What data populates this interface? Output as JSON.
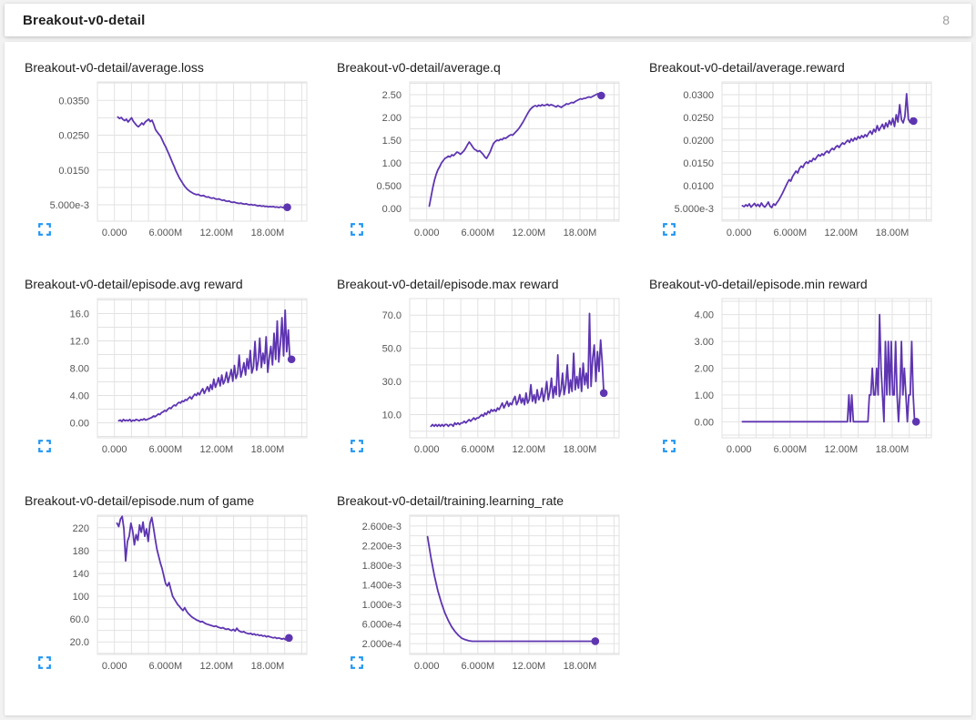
{
  "header": {
    "title": "Breakout-v0-detail",
    "count": "8"
  },
  "colors": {
    "line": "#5e35b1",
    "grid": "#e2e2e2",
    "tick_text": "#555555",
    "title_text": "#212121",
    "expand_icon": "#2196f3",
    "card_bg": "#ffffff",
    "page_bg": "#f2f2f2"
  },
  "icons": {
    "expand": "fullscreen-expand-icon"
  },
  "axis": {
    "xlim": [
      -2000000,
      22600000
    ],
    "x_grid_step": 2000000,
    "x_ticks": [
      {
        "v": 0,
        "label": "0.000"
      },
      {
        "v": 6000000,
        "label": "6.000M"
      },
      {
        "v": 12000000,
        "label": "12.00M"
      },
      {
        "v": 18000000,
        "label": "18.00M"
      }
    ]
  },
  "chart_data": [
    {
      "type": "line",
      "title": "Breakout-v0-detail/average.loss",
      "ylim": [
        0.0003,
        0.0403
      ],
      "y_grid_step": 0.005,
      "yticks": [
        {
          "v": 0.035,
          "label": "0.0350"
        },
        {
          "v": 0.025,
          "label": "0.0250"
        },
        {
          "v": 0.015,
          "label": "0.0150"
        },
        {
          "v": 0.005,
          "label": "5.000e-3"
        }
      ],
      "x_start": 400000,
      "x_end": 20300000,
      "values": [
        0.0302,
        0.0298,
        0.0301,
        0.0295,
        0.0292,
        0.0296,
        0.0288,
        0.0294,
        0.03,
        0.029,
        0.0284,
        0.0278,
        0.0274,
        0.0279,
        0.0285,
        0.028,
        0.0288,
        0.0292,
        0.0296,
        0.0289,
        0.0293,
        0.0281,
        0.0266,
        0.0259,
        0.0253,
        0.0247,
        0.0236,
        0.0225,
        0.0216,
        0.0205,
        0.0194,
        0.0182,
        0.017,
        0.0159,
        0.0147,
        0.0137,
        0.0127,
        0.0119,
        0.0111,
        0.0104,
        0.0098,
        0.0093,
        0.0089,
        0.0086,
        0.0083,
        0.0081,
        0.0079,
        0.008,
        0.0077,
        0.0076,
        0.0077,
        0.0074,
        0.0072,
        0.0073,
        0.007,
        0.0069,
        0.007,
        0.0067,
        0.0066,
        0.0067,
        0.0065,
        0.0063,
        0.0064,
        0.0061,
        0.006,
        0.0061,
        0.0058,
        0.0057,
        0.0058,
        0.0056,
        0.0055,
        0.0054,
        0.0055,
        0.0053,
        0.0052,
        0.0053,
        0.0051,
        0.005,
        0.0051,
        0.0049,
        0.005,
        0.0048,
        0.0047,
        0.0048,
        0.0046,
        0.0047,
        0.0045,
        0.0046,
        0.0044,
        0.0045,
        0.0044,
        0.0045,
        0.0043,
        0.0044,
        0.0042,
        0.0044,
        0.0043,
        0.0042,
        0.0043,
        0.0043
      ]
    },
    {
      "type": "line",
      "title": "Breakout-v0-detail/average.q",
      "ylim": [
        -0.28,
        2.78
      ],
      "y_grid_step": 0.25,
      "yticks": [
        {
          "v": 2.5,
          "label": "2.50"
        },
        {
          "v": 2.0,
          "label": "2.00"
        },
        {
          "v": 1.5,
          "label": "1.50"
        },
        {
          "v": 1.0,
          "label": "1.00"
        },
        {
          "v": 0.5,
          "label": "0.500"
        },
        {
          "v": 0.0,
          "label": "0.00"
        }
      ],
      "x_start": 300000,
      "x_end": 20500000,
      "values": [
        0.05,
        0.25,
        0.45,
        0.62,
        0.75,
        0.85,
        0.92,
        1.0,
        1.05,
        1.1,
        1.12,
        1.15,
        1.13,
        1.18,
        1.16,
        1.2,
        1.24,
        1.22,
        1.19,
        1.23,
        1.27,
        1.33,
        1.4,
        1.46,
        1.41,
        1.35,
        1.3,
        1.28,
        1.25,
        1.27,
        1.23,
        1.19,
        1.13,
        1.1,
        1.17,
        1.24,
        1.34,
        1.43,
        1.47,
        1.5,
        1.49,
        1.52,
        1.51,
        1.55,
        1.54,
        1.57,
        1.6,
        1.62,
        1.61,
        1.65,
        1.69,
        1.73,
        1.78,
        1.84,
        1.9,
        1.97,
        2.04,
        2.11,
        2.17,
        2.21,
        2.24,
        2.26,
        2.24,
        2.27,
        2.25,
        2.28,
        2.26,
        2.27,
        2.29,
        2.26,
        2.28,
        2.27,
        2.25,
        2.23,
        2.26,
        2.24,
        2.22,
        2.25,
        2.27,
        2.3,
        2.29,
        2.31,
        2.33,
        2.32,
        2.35,
        2.37,
        2.39,
        2.41,
        2.4,
        2.42,
        2.42,
        2.44,
        2.45,
        2.44,
        2.46,
        2.48,
        2.5,
        2.52,
        2.49,
        2.48
      ]
    },
    {
      "type": "line",
      "title": "Breakout-v0-detail/average.reward",
      "ylim": [
        0.0022,
        0.0328
      ],
      "y_grid_step": 0.0025,
      "yticks": [
        {
          "v": 0.03,
          "label": "0.0300"
        },
        {
          "v": 0.025,
          "label": "0.0250"
        },
        {
          "v": 0.02,
          "label": "0.0200"
        },
        {
          "v": 0.015,
          "label": "0.0150"
        },
        {
          "v": 0.01,
          "label": "0.0100"
        },
        {
          "v": 0.005,
          "label": "5.000e-3"
        }
      ],
      "x_start": 400000,
      "x_end": 20500000,
      "values": [
        0.0056,
        0.0054,
        0.0058,
        0.0055,
        0.006,
        0.0053,
        0.0057,
        0.0061,
        0.0055,
        0.0059,
        0.0054,
        0.0062,
        0.0056,
        0.0053,
        0.0058,
        0.0064,
        0.0055,
        0.0052,
        0.006,
        0.0057,
        0.0063,
        0.0068,
        0.0075,
        0.0082,
        0.009,
        0.0098,
        0.0106,
        0.0113,
        0.011,
        0.012,
        0.0126,
        0.0132,
        0.0128,
        0.0138,
        0.0143,
        0.014,
        0.0148,
        0.0152,
        0.0149,
        0.0155,
        0.0153,
        0.016,
        0.0157,
        0.0163,
        0.0168,
        0.0165,
        0.017,
        0.0167,
        0.0173,
        0.0176,
        0.0172,
        0.0178,
        0.0182,
        0.0179,
        0.0185,
        0.0188,
        0.0184,
        0.019,
        0.0194,
        0.0191,
        0.0196,
        0.02,
        0.0195,
        0.0203,
        0.0198,
        0.0205,
        0.0201,
        0.0208,
        0.0204,
        0.021,
        0.0206,
        0.0212,
        0.0208,
        0.0215,
        0.022,
        0.0213,
        0.0224,
        0.0218,
        0.0232,
        0.0221,
        0.0228,
        0.0235,
        0.0225,
        0.0238,
        0.0229,
        0.0243,
        0.0234,
        0.0248,
        0.023,
        0.0256,
        0.024,
        0.0278,
        0.0245,
        0.0238,
        0.0252,
        0.0302,
        0.0246,
        0.0239,
        0.0248,
        0.0242
      ]
    },
    {
      "type": "line",
      "title": "Breakout-v0-detail/episode.avg reward",
      "ylim": [
        -2.2,
        18.2
      ],
      "y_grid_step": 2,
      "yticks": [
        {
          "v": 16,
          "label": "16.0"
        },
        {
          "v": 12,
          "label": "12.0"
        },
        {
          "v": 8,
          "label": "8.00"
        },
        {
          "v": 4,
          "label": "4.00"
        },
        {
          "v": 0,
          "label": "0.00"
        }
      ],
      "x_start": 500000,
      "x_end": 20800000,
      "values": [
        0.3,
        0.4,
        0.2,
        0.5,
        0.3,
        0.4,
        0.3,
        0.5,
        0.2,
        0.4,
        0.3,
        0.5,
        0.4,
        0.3,
        0.5,
        0.4,
        0.6,
        0.4,
        0.5,
        0.6,
        0.7,
        0.8,
        1.0,
        0.9,
        1.1,
        1.3,
        1.2,
        1.5,
        1.6,
        1.8,
        1.7,
        2.0,
        2.2,
        2.1,
        2.4,
        2.6,
        2.5,
        2.8,
        3.0,
        2.9,
        3.2,
        3.1,
        3.4,
        3.3,
        3.6,
        3.8,
        3.5,
        3.9,
        4.2,
        4.0,
        4.4,
        4.1,
        4.6,
        5.0,
        4.3,
        4.8,
        5.3,
        4.6,
        5.6,
        4.9,
        6.4,
        5.2,
        5.8,
        6.6,
        5.4,
        7.0,
        5.7,
        6.2,
        7.4,
        5.9,
        6.8,
        7.8,
        6.1,
        8.4,
        6.5,
        7.2,
        9.9,
        6.7,
        7.6,
        8.8,
        7.0,
        9.4,
        7.9,
        10.6,
        7.3,
        8.2,
        11.9,
        7.7,
        9.0,
        12.4,
        8.1,
        10.2,
        8.7,
        12.6,
        7.4,
        9.6,
        11.2,
        8.5,
        13.1,
        9.3,
        14.9,
        8.9,
        11.6,
        15.4,
        9.8,
        16.5,
        10.4,
        13.6,
        9.1,
        9.3
      ]
    },
    {
      "type": "line",
      "title": "Breakout-v0-detail/episode.max reward",
      "ylim": [
        -4,
        80
      ],
      "y_grid_step": 10,
      "yticks": [
        {
          "v": 70,
          "label": "70.0"
        },
        {
          "v": 50,
          "label": "50.0"
        },
        {
          "v": 30,
          "label": "30.0"
        },
        {
          "v": 10,
          "label": "10.0"
        }
      ],
      "x_start": 500000,
      "x_end": 20800000,
      "values": [
        3,
        4,
        3,
        4,
        3,
        4,
        3,
        4,
        3,
        4,
        4,
        3,
        4,
        4,
        3,
        5,
        4,
        5,
        4,
        5,
        5,
        6,
        5,
        6,
        7,
        6,
        7,
        8,
        7,
        8,
        8,
        9,
        10,
        9,
        11,
        10,
        12,
        11,
        13,
        12,
        13,
        12,
        14,
        13,
        15,
        17,
        14,
        16,
        18,
        15,
        17,
        16,
        19,
        21,
        16,
        18,
        22,
        17,
        20,
        16,
        23,
        17,
        19,
        28,
        18,
        22,
        17,
        25,
        19,
        21,
        26,
        18,
        23,
        30,
        19,
        24,
        32,
        20,
        27,
        22,
        46,
        21,
        25,
        35,
        22,
        28,
        40,
        23,
        31,
        24,
        47,
        25,
        33,
        26,
        38,
        24,
        41,
        28,
        35,
        26,
        71,
        27,
        44,
        52,
        30,
        48,
        36,
        55,
        42,
        23
      ]
    },
    {
      "type": "line",
      "title": "Breakout-v0-detail/episode.min reward",
      "ylim": [
        -0.6,
        4.6
      ],
      "y_grid_step": 0.5,
      "yticks": [
        {
          "v": 4,
          "label": "4.00"
        },
        {
          "v": 3,
          "label": "3.00"
        },
        {
          "v": 2,
          "label": "2.00"
        },
        {
          "v": 1,
          "label": "1.00"
        },
        {
          "v": 0,
          "label": "0.00"
        }
      ],
      "x_start": 400000,
      "x_end": 20800000,
      "values": [
        0,
        0,
        0,
        0,
        0,
        0,
        0,
        0,
        0,
        0,
        0,
        0,
        0,
        0,
        0,
        0,
        0,
        0,
        0,
        0,
        0,
        0,
        0,
        0,
        0,
        0,
        0,
        0,
        0,
        0,
        0,
        0,
        0,
        0,
        0,
        0,
        0,
        0,
        0,
        0,
        0,
        0,
        0,
        0,
        0,
        0,
        0,
        0,
        0,
        0,
        0,
        0,
        0,
        0,
        0,
        0,
        0,
        0,
        0,
        0,
        0,
        0,
        0,
        0,
        0,
        0,
        0,
        0,
        0,
        0,
        0,
        0,
        0,
        1,
        0,
        1,
        0,
        0,
        0,
        0,
        0,
        0,
        0,
        0,
        0,
        0,
        0,
        1,
        1,
        2,
        1,
        1,
        2,
        1,
        4,
        2,
        1,
        0,
        3,
        1,
        3,
        1,
        3,
        1,
        1,
        3,
        1,
        0,
        1,
        3,
        1,
        2,
        1,
        0,
        1,
        1,
        3,
        1,
        0,
        0
      ]
    },
    {
      "type": "line",
      "title": "Breakout-v0-detail/episode.num of game",
      "ylim": [
        -2,
        242
      ],
      "y_grid_step": 20,
      "yticks": [
        {
          "v": 220,
          "label": "220"
        },
        {
          "v": 180,
          "label": "180"
        },
        {
          "v": 140,
          "label": "140"
        },
        {
          "v": 100,
          "label": "100"
        },
        {
          "v": 60,
          "label": "60.0"
        },
        {
          "v": 20,
          "label": "20.0"
        }
      ],
      "x_start": 300000,
      "x_end": 20500000,
      "values": [
        228,
        222,
        235,
        240,
        218,
        162,
        196,
        205,
        228,
        215,
        190,
        208,
        198,
        225,
        212,
        230,
        205,
        218,
        196,
        228,
        238,
        220,
        200,
        182,
        170,
        158,
        148,
        135,
        122,
        118,
        124,
        112,
        100,
        95,
        90,
        85,
        82,
        78,
        75,
        80,
        74,
        70,
        67,
        64,
        62,
        60,
        58,
        57,
        55,
        56,
        54,
        52,
        51,
        50,
        49,
        48,
        47,
        48,
        46,
        45,
        44,
        45,
        43,
        42,
        43,
        41,
        40,
        42,
        39,
        44,
        40,
        38,
        37,
        38,
        36,
        35,
        34,
        35,
        33,
        34,
        32,
        33,
        31,
        32,
        30,
        31,
        29,
        30,
        29,
        28,
        27,
        28,
        26,
        27,
        26,
        25,
        26,
        24,
        26,
        27
      ]
    },
    {
      "type": "line",
      "title": "Breakout-v0-detail/training.learning_rate",
      "ylim": [
        -2e-05,
        0.00282
      ],
      "y_grid_step": 0.0002,
      "yticks": [
        {
          "v": 0.0026,
          "label": "2.600e-3"
        },
        {
          "v": 0.0022,
          "label": "2.200e-3"
        },
        {
          "v": 0.0018,
          "label": "1.800e-3"
        },
        {
          "v": 0.0014,
          "label": "1.400e-3"
        },
        {
          "v": 0.001,
          "label": "1.000e-3"
        },
        {
          "v": 0.0006,
          "label": "6.000e-4"
        },
        {
          "v": 0.0002,
          "label": "2.000e-4"
        }
      ],
      "x_start": 100000,
      "x_end": 19800000,
      "values": [
        0.00238,
        0.00195,
        0.00158,
        0.00128,
        0.00104,
        0.00084,
        0.00068,
        0.00055,
        0.00045,
        0.00037,
        0.00031,
        0.00028,
        0.00026,
        0.00025,
        0.00025,
        0.00025,
        0.00025,
        0.00025,
        0.00025,
        0.00025,
        0.00025,
        0.00025,
        0.00025,
        0.00025,
        0.00025,
        0.00025,
        0.00025,
        0.00025,
        0.00025,
        0.00025,
        0.00025,
        0.00025,
        0.00025,
        0.00025,
        0.00025,
        0.00025,
        0.00025,
        0.00025,
        0.00025,
        0.00025,
        0.00025,
        0.00025,
        0.00025,
        0.00025,
        0.00025,
        0.00025,
        0.00025,
        0.00025,
        0.00025,
        0.00025
      ]
    }
  ]
}
